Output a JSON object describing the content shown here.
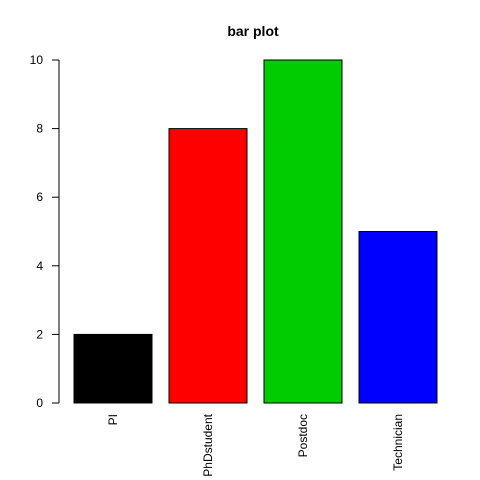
{
  "chart_data": {
    "type": "bar",
    "title": "bar plot",
    "xlabel": "",
    "ylabel": "",
    "categories": [
      "PI",
      "PhDstudent",
      "Postdoc",
      "Technician"
    ],
    "values": [
      2,
      8,
      10,
      5
    ],
    "colors": [
      "#000000",
      "#ff0000",
      "#00cc00",
      "#0000ff"
    ],
    "ylim": [
      0,
      10
    ],
    "yticks": [
      0,
      2,
      4,
      6,
      8,
      10
    ],
    "grid": false,
    "legend": "none",
    "x_tick_label_orientation": "vertical"
  }
}
